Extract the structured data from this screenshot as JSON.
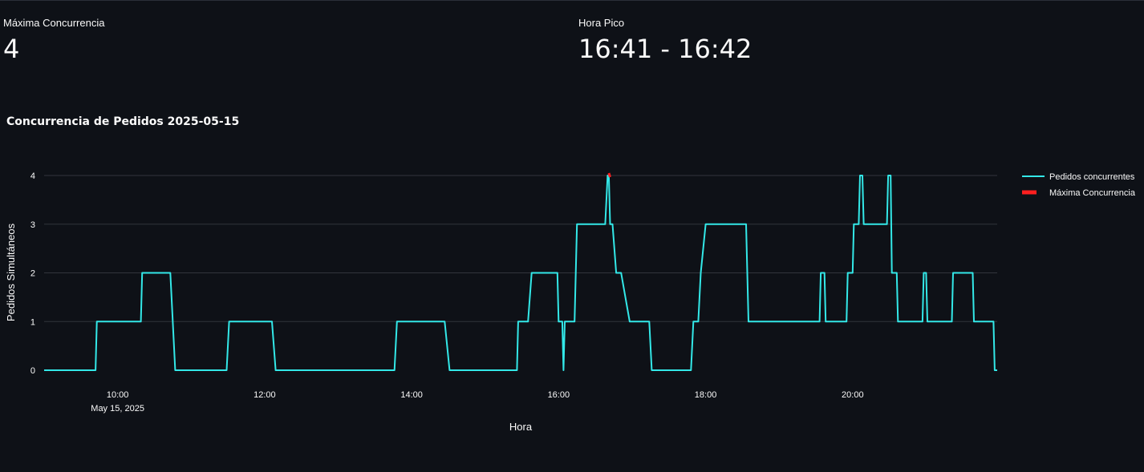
{
  "metrics": [
    {
      "label": "Máxima Concurrencia",
      "value": "4"
    },
    {
      "label": "Hora Pico",
      "value": "16:41 - 16:42"
    }
  ],
  "colors": {
    "background": "#0e1117",
    "series": "#33e8e8",
    "peak": "#ff1f1f",
    "grid": "#31343c",
    "text": "#fafafa"
  },
  "chart_data": {
    "type": "line",
    "title": "Concurrencia de Pedidos 2025-05-15",
    "xlabel": "Hora",
    "ylabel": "Pedidos Simultáneos",
    "x_ticks": [
      "10:00",
      "12:00",
      "14:00",
      "16:00",
      "18:00",
      "20:00"
    ],
    "x_tick_sublabel": "May 15, 2025",
    "y_ticks": [
      0,
      1,
      2,
      3,
      4
    ],
    "ylim": [
      0,
      4
    ],
    "xlim": [
      "09:00",
      "21:58"
    ],
    "grid": true,
    "legend_position": "top-right",
    "series": [
      {
        "name": "Pedidos concurrentes",
        "x": [
          "09:00",
          "09:42",
          "09:43",
          "10:19",
          "10:20",
          "10:43",
          "10:47",
          "11:29",
          "11:31",
          "12:06",
          "12:09",
          "13:46",
          "13:48",
          "14:27",
          "14:31",
          "15:26",
          "15:27",
          "15:35",
          "15:38",
          "15:59",
          "16:00",
          "16:03",
          "16:04",
          "16:05",
          "16:06",
          "16:13",
          "16:15",
          "16:38",
          "16:40",
          "16:41",
          "16:42",
          "16:44",
          "16:47",
          "16:50",
          "16:51",
          "16:58",
          "17:00",
          "17:14",
          "17:16",
          "17:48",
          "17:50",
          "17:54",
          "17:56",
          "18:00",
          "18:01",
          "18:33",
          "18:35",
          "19:33",
          "19:34",
          "19:37",
          "19:38",
          "19:55",
          "19:56",
          "20:00",
          "20:01",
          "20:05",
          "20:06",
          "20:08",
          "20:09",
          "20:28",
          "20:29",
          "20:31",
          "20:32",
          "20:36",
          "20:37",
          "20:57",
          "20:58",
          "21:00",
          "21:01",
          "21:21",
          "21:22",
          "21:38",
          "21:39",
          "21:55",
          "21:56",
          "21:58"
        ],
        "y": [
          0,
          0,
          1,
          1,
          2,
          2,
          0,
          0,
          1,
          1,
          0,
          0,
          1,
          1,
          0,
          0,
          1,
          1,
          2,
          2,
          1,
          1,
          0,
          1,
          1,
          1,
          3,
          3,
          4,
          4,
          3,
          3,
          2,
          2,
          2,
          1,
          1,
          1,
          0,
          0,
          1,
          1,
          2,
          3,
          3,
          3,
          1,
          1,
          2,
          2,
          1,
          1,
          2,
          2,
          3,
          3,
          4,
          4,
          3,
          3,
          4,
          4,
          2,
          2,
          1,
          1,
          2,
          2,
          1,
          1,
          2,
          2,
          1,
          1,
          0,
          0
        ]
      },
      {
        "name": "Máxima Concurrencia",
        "x": [
          "16:41",
          "16:42"
        ],
        "y": [
          4,
          4
        ]
      }
    ]
  }
}
